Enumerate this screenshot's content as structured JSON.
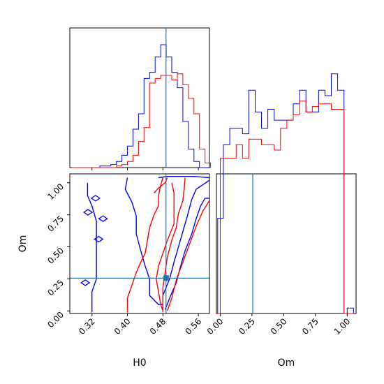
{
  "chart_data": [
    {
      "type": "histogram",
      "panel": "H0 marginal",
      "xlim": [
        0.27,
        0.585
      ],
      "bins": [
        0.275,
        0.2875,
        0.3,
        0.3125,
        0.325,
        0.3375,
        0.35,
        0.3625,
        0.375,
        0.3875,
        0.4,
        0.4125,
        0.425,
        0.4375,
        0.45,
        0.4625,
        0.475,
        0.4875,
        0.5,
        0.5125,
        0.525,
        0.5375,
        0.55,
        0.5625,
        0.575,
        0.5875
      ],
      "truth": 0.487,
      "series": [
        {
          "color": "#0000ff",
          "values": [
            0.0,
            0.0,
            0.0,
            0.0,
            0.0,
            0.01,
            0.01,
            0.02,
            0.04,
            0.08,
            0.14,
            0.25,
            0.35,
            0.58,
            0.62,
            0.72,
            0.8,
            0.72,
            0.62,
            0.52,
            0.3,
            0.12,
            0.04,
            0.0,
            0.0
          ]
        },
        {
          "color": "#ff0000",
          "values": [
            0.0,
            0.0,
            0.0,
            0.0,
            0.0,
            0.0,
            0.0,
            0.0,
            0.01,
            0.02,
            0.04,
            0.08,
            0.17,
            0.26,
            0.55,
            0.58,
            0.6,
            0.6,
            0.57,
            0.61,
            0.54,
            0.45,
            0.35,
            0.12,
            0.03
          ]
        }
      ]
    },
    {
      "type": "contour",
      "panel": "H0 vs Om",
      "xlabel": "H0",
      "ylabel": "Om",
      "xlim": [
        0.27,
        0.585
      ],
      "ylim": [
        -0.02,
        1.07
      ],
      "xticks": [
        0.32,
        0.4,
        0.48,
        0.56
      ],
      "xtick_labels": [
        "0.32",
        "0.40",
        "0.48",
        "0.56"
      ],
      "yticks": [
        0.0,
        0.25,
        0.5,
        0.75,
        1.0
      ],
      "ytick_labels": [
        "0.00",
        "0.25",
        "0.50",
        "0.75",
        "1.00"
      ],
      "truth": {
        "x": 0.487,
        "y": 0.256
      },
      "series": [
        {
          "color": "#0000ff",
          "lines": [
            [
              [
                0.31,
                1.0
              ],
              [
                0.31,
                0.9
              ],
              [
                0.32,
                0.82
              ],
              [
                0.33,
                0.7
              ],
              [
                0.33,
                0.55
              ],
              [
                0.33,
                0.4
              ],
              [
                0.33,
                0.25
              ],
              [
                0.32,
                0.15
              ],
              [
                0.32,
                0.05
              ],
              [
                0.32,
                -0.01
              ]
            ],
            [
              [
                0.4,
                1.04
              ],
              [
                0.395,
                0.95
              ],
              [
                0.41,
                0.85
              ],
              [
                0.42,
                0.74
              ],
              [
                0.42,
                0.6
              ],
              [
                0.43,
                0.47
              ],
              [
                0.44,
                0.35
              ],
              [
                0.45,
                0.25
              ],
              [
                0.45,
                0.12
              ],
              [
                0.47,
                0.05
              ],
              [
                0.48,
                0.05
              ]
            ],
            [
              [
                0.48,
                0.02
              ],
              [
                0.48,
                0.12
              ],
              [
                0.495,
                0.25
              ],
              [
                0.505,
                0.38
              ],
              [
                0.515,
                0.5
              ],
              [
                0.525,
                0.62
              ],
              [
                0.535,
                0.74
              ],
              [
                0.545,
                0.87
              ],
              [
                0.555,
                0.95
              ],
              [
                0.585,
                1.02
              ]
            ],
            [
              [
                0.485,
                0.01
              ],
              [
                0.495,
                0.1
              ],
              [
                0.51,
                0.22
              ],
              [
                0.52,
                0.35
              ],
              [
                0.53,
                0.47
              ],
              [
                0.545,
                0.6
              ],
              [
                0.555,
                0.72
              ],
              [
                0.565,
                0.82
              ],
              [
                0.575,
                0.88
              ],
              [
                0.585,
                0.88
              ]
            ],
            [
              [
                0.47,
                1.04
              ],
              [
                0.49,
                1.05
              ],
              [
                0.52,
                1.05
              ],
              [
                0.55,
                1.05
              ],
              [
                0.585,
                1.04
              ]
            ]
          ]
        },
        {
          "color": "#ff0000",
          "lines": [
            [
              [
                0.4,
                -0.01
              ],
              [
                0.4,
                0.1
              ],
              [
                0.41,
                0.2
              ],
              [
                0.42,
                0.3
              ],
              [
                0.43,
                0.38
              ],
              [
                0.44,
                0.45
              ],
              [
                0.445,
                0.55
              ],
              [
                0.45,
                0.65
              ],
              [
                0.46,
                0.75
              ],
              [
                0.47,
                0.82
              ],
              [
                0.47,
                0.9
              ],
              [
                0.475,
                0.98
              ],
              [
                0.48,
                1.04
              ]
            ],
            [
              [
                0.5,
                1.0
              ],
              [
                0.505,
                0.92
              ],
              [
                0.505,
                0.8
              ],
              [
                0.505,
                0.68
              ],
              [
                0.49,
                0.55
              ],
              [
                0.48,
                0.45
              ],
              [
                0.47,
                0.35
              ],
              [
                0.465,
                0.25
              ],
              [
                0.47,
                0.15
              ],
              [
                0.475,
                0.05
              ],
              [
                0.48,
                0.0
              ]
            ],
            [
              [
                0.53,
                1.04
              ],
              [
                0.528,
                0.95
              ],
              [
                0.525,
                0.86
              ],
              [
                0.515,
                0.76
              ],
              [
                0.51,
                0.65
              ],
              [
                0.5,
                0.55
              ],
              [
                0.49,
                0.42
              ],
              [
                0.485,
                0.3
              ],
              [
                0.48,
                0.18
              ],
              [
                0.48,
                0.06
              ],
              [
                0.48,
                -0.01
              ]
            ],
            [
              [
                0.49,
                0.0
              ],
              [
                0.5,
                0.1
              ],
              [
                0.51,
                0.24
              ],
              [
                0.525,
                0.38
              ],
              [
                0.54,
                0.52
              ],
              [
                0.555,
                0.66
              ],
              [
                0.57,
                0.78
              ],
              [
                0.585,
                0.86
              ]
            ],
            [
              [
                0.46,
                0.92
              ],
              [
                0.47,
                0.96
              ],
              [
                0.485,
                1.0
              ],
              [
                0.49,
                1.04
              ]
            ]
          ]
        }
      ]
    },
    {
      "type": "histogram",
      "panel": "Om marginal",
      "xlabel": "Om",
      "xlim": [
        -0.03,
        1.07
      ],
      "xticks": [
        0.0,
        0.25,
        0.5,
        0.75,
        1.0
      ],
      "xtick_labels": [
        "0.00",
        "0.25",
        "0.50",
        "0.75",
        "1.00"
      ],
      "bins": [
        -0.02,
        0.0,
        0.025,
        0.075,
        0.125,
        0.175,
        0.225,
        0.275,
        0.325,
        0.375,
        0.425,
        0.475,
        0.525,
        0.575,
        0.625,
        0.675,
        0.725,
        0.775,
        0.825,
        0.875,
        0.925,
        0.975,
        1.0,
        1.05
      ],
      "truth": 0.256,
      "series": [
        {
          "color": "#0000ff",
          "values": [
            0.35,
            0.35,
            0.62,
            0.68,
            0.68,
            0.66,
            0.82,
            0.74,
            0.68,
            0.75,
            0.71,
            0.71,
            0.71,
            0.77,
            0.82,
            0.74,
            0.74,
            0.82,
            0.8,
            0.88,
            0.82,
            0.0,
            0.02
          ]
        },
        {
          "color": "#ff0000",
          "values": [
            0.0,
            0.57,
            0.57,
            0.57,
            0.62,
            0.57,
            0.64,
            0.64,
            0.62,
            0.62,
            0.6,
            0.68,
            0.71,
            0.73,
            0.78,
            0.74,
            0.76,
            0.77,
            0.77,
            0.75,
            0.75,
            0.0,
            0.0
          ]
        }
      ]
    }
  ],
  "colors": {
    "truth": "#1f77b4",
    "series_a": "#0000ff",
    "series_b": "#ff0000"
  }
}
